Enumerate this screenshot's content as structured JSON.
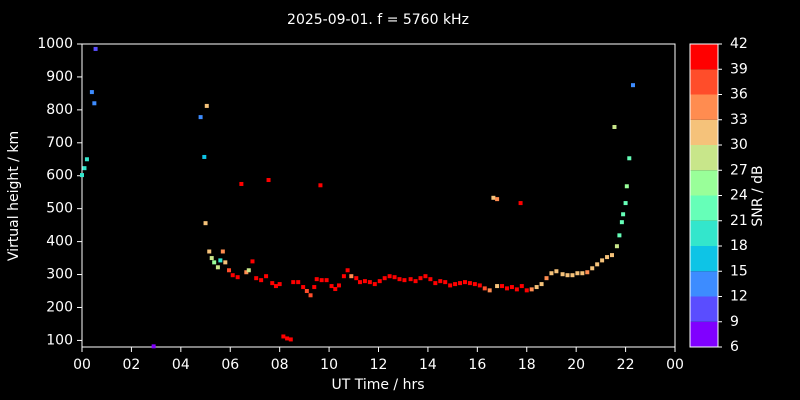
{
  "chart_data": {
    "type": "scatter",
    "title": "2025-09-01. f = 5760 kHz",
    "x_label": "UT Time / hrs",
    "y_label": "Virtual height / km",
    "xlim": [
      0,
      24
    ],
    "ylim": [
      80,
      1000
    ],
    "xticks": [
      {
        "value": 0,
        "label": "00"
      },
      {
        "value": 2,
        "label": "02"
      },
      {
        "value": 4,
        "label": "04"
      },
      {
        "value": 6,
        "label": "06"
      },
      {
        "value": 8,
        "label": "08"
      },
      10,
      12,
      14,
      16,
      18,
      20,
      22,
      {
        "value": 24,
        "label": "00"
      }
    ],
    "yticks": [
      100,
      200,
      300,
      400,
      500,
      600,
      700,
      800,
      900,
      1000
    ],
    "colorbar": {
      "label": "SNR / dB",
      "lim": [
        6,
        42
      ],
      "ticks": [
        6,
        9,
        12,
        15,
        18,
        21,
        24,
        27,
        30,
        33,
        36,
        39,
        42
      ],
      "colors": [
        "#8000ff",
        "#5a4dff",
        "#3d8cff",
        "#0ec4e6",
        "#33e6cc",
        "#66ffb8",
        "#99ff99",
        "#c8e68a",
        "#f5c27a",
        "#ff8c50",
        "#ff4d2a",
        "#ff0000"
      ]
    },
    "series": [
      {
        "x": [
          0,
          0.1,
          0.2,
          0.4,
          0.5,
          0.55,
          2.9,
          4.8,
          4.95,
          5.05,
          5.0,
          5.15,
          5.25,
          5.35,
          5.5,
          5.6,
          5.7,
          5.8,
          5.95,
          6.1,
          6.3,
          6.45,
          6.65,
          6.75,
          6.9,
          7.05,
          7.25,
          7.45,
          7.55,
          7.7,
          7.85,
          8.0,
          8.15,
          8.3,
          8.45,
          8.55,
          8.75,
          8.95,
          9.1,
          9.25,
          9.4,
          9.5,
          9.65,
          9.7,
          9.9,
          10.1,
          10.25,
          10.4,
          10.6,
          10.75,
          10.9,
          11.1,
          11.25,
          11.45,
          11.65,
          11.85,
          12.05,
          12.25,
          12.45,
          12.65,
          12.85,
          13.05,
          13.3,
          13.5,
          13.7,
          13.9,
          14.1,
          14.3,
          14.5,
          14.7,
          14.9,
          15.1,
          15.3,
          15.5,
          15.7,
          15.9,
          16.1,
          16.3,
          16.5,
          16.65,
          16.8,
          16.8,
          17.0,
          17.2,
          17.4,
          17.6,
          17.75,
          17.8,
          18.0,
          18.2,
          18.4,
          18.6,
          18.8,
          19.0,
          19.2,
          19.45,
          19.65,
          19.85,
          20.05,
          20.25,
          20.45,
          20.65,
          20.85,
          21.05,
          21.25,
          21.45,
          21.55,
          21.65,
          21.75,
          21.85,
          21.9,
          22.0,
          22.05,
          22.15,
          22.3
        ],
        "y": [
          602,
          623,
          650,
          854,
          820,
          985,
          82,
          778,
          657,
          812,
          456,
          370,
          350,
          337,
          322,
          343,
          370,
          337,
          313,
          298,
          292,
          575,
          307,
          313,
          340,
          289,
          283,
          295,
          587,
          274,
          265,
          271,
          112,
          106,
          103,
          277,
          277,
          262,
          250,
          237,
          262,
          286,
          571,
          283,
          283,
          265,
          256,
          267,
          295,
          313,
          295,
          289,
          277,
          280,
          277,
          271,
          280,
          289,
          295,
          292,
          286,
          283,
          286,
          280,
          289,
          295,
          286,
          274,
          280,
          277,
          267,
          271,
          274,
          277,
          274,
          271,
          267,
          258,
          252,
          533,
          529,
          265,
          265,
          258,
          262,
          255,
          517,
          265,
          252,
          255,
          262,
          271,
          289,
          304,
          310,
          301,
          298,
          298,
          304,
          304,
          307,
          319,
          331,
          343,
          353,
          359,
          748,
          386,
          419,
          459,
          483,
          517,
          568,
          653,
          875
        ],
        "snr": [
          20,
          20,
          19,
          14,
          13,
          10,
          8,
          13,
          15,
          30,
          30,
          30,
          27,
          24,
          27,
          20,
          35,
          30,
          36,
          39,
          40,
          40,
          33,
          27,
          40,
          40,
          39,
          39,
          40,
          40,
          40,
          40,
          40,
          40,
          40,
          40,
          40,
          40,
          37,
          38,
          40,
          40,
          39,
          40,
          40,
          40,
          40,
          40,
          40,
          40,
          33,
          40,
          40,
          40,
          40,
          40,
          40,
          40,
          40,
          40,
          40,
          40,
          40,
          40,
          40,
          40,
          40,
          40,
          40,
          40,
          40,
          40,
          40,
          40,
          40,
          40,
          40,
          37,
          34,
          30,
          33,
          30,
          40,
          40,
          40,
          40,
          40,
          40,
          40,
          33,
          30,
          32,
          33,
          32,
          30,
          30,
          30,
          30,
          30,
          30,
          33,
          32,
          31,
          30,
          30,
          30,
          27,
          28,
          23,
          21,
          21,
          22,
          24,
          22,
          12
        ]
      }
    ]
  }
}
